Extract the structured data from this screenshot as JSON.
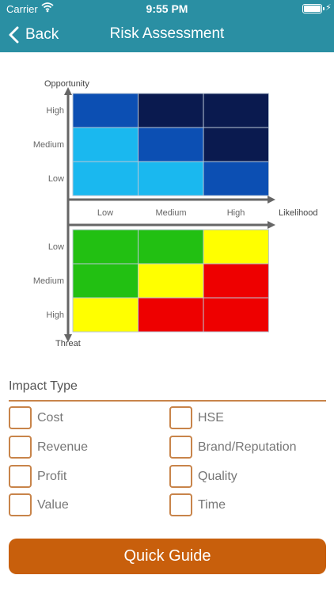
{
  "status": {
    "carrier": "Carrier",
    "time": "9:55 PM"
  },
  "nav": {
    "back_label": "Back",
    "title": "Risk Assessment"
  },
  "matrix": {
    "y_top_label": "Opportunity",
    "y_bottom_label": "Threat",
    "x_label": "Likelihood",
    "x_ticks": [
      "Low",
      "Medium",
      "High"
    ],
    "opportunity_rows": [
      "High",
      "Medium",
      "Low"
    ],
    "threat_rows": [
      "Low",
      "Medium",
      "High"
    ],
    "opportunity_colors": [
      [
        "#0c4fb3",
        "#0a1a4f",
        "#0a1a4f"
      ],
      [
        "#1ab8ef",
        "#0c4fb3",
        "#0a1a4f"
      ],
      [
        "#1ab8ef",
        "#1ab8ef",
        "#0c4fb3"
      ]
    ],
    "threat_colors": [
      [
        "#22c012",
        "#22c012",
        "#ffff00"
      ],
      [
        "#22c012",
        "#ffff00",
        "#ee0000"
      ],
      [
        "#ffff00",
        "#ee0000",
        "#ee0000"
      ]
    ]
  },
  "impact": {
    "title": "Impact Type",
    "items": [
      "Cost",
      "HSE",
      "Revenue",
      "Brand/Reputation",
      "Profit",
      "Quality",
      "Value",
      "Time"
    ]
  },
  "button": {
    "quick_guide": "Quick Guide"
  }
}
